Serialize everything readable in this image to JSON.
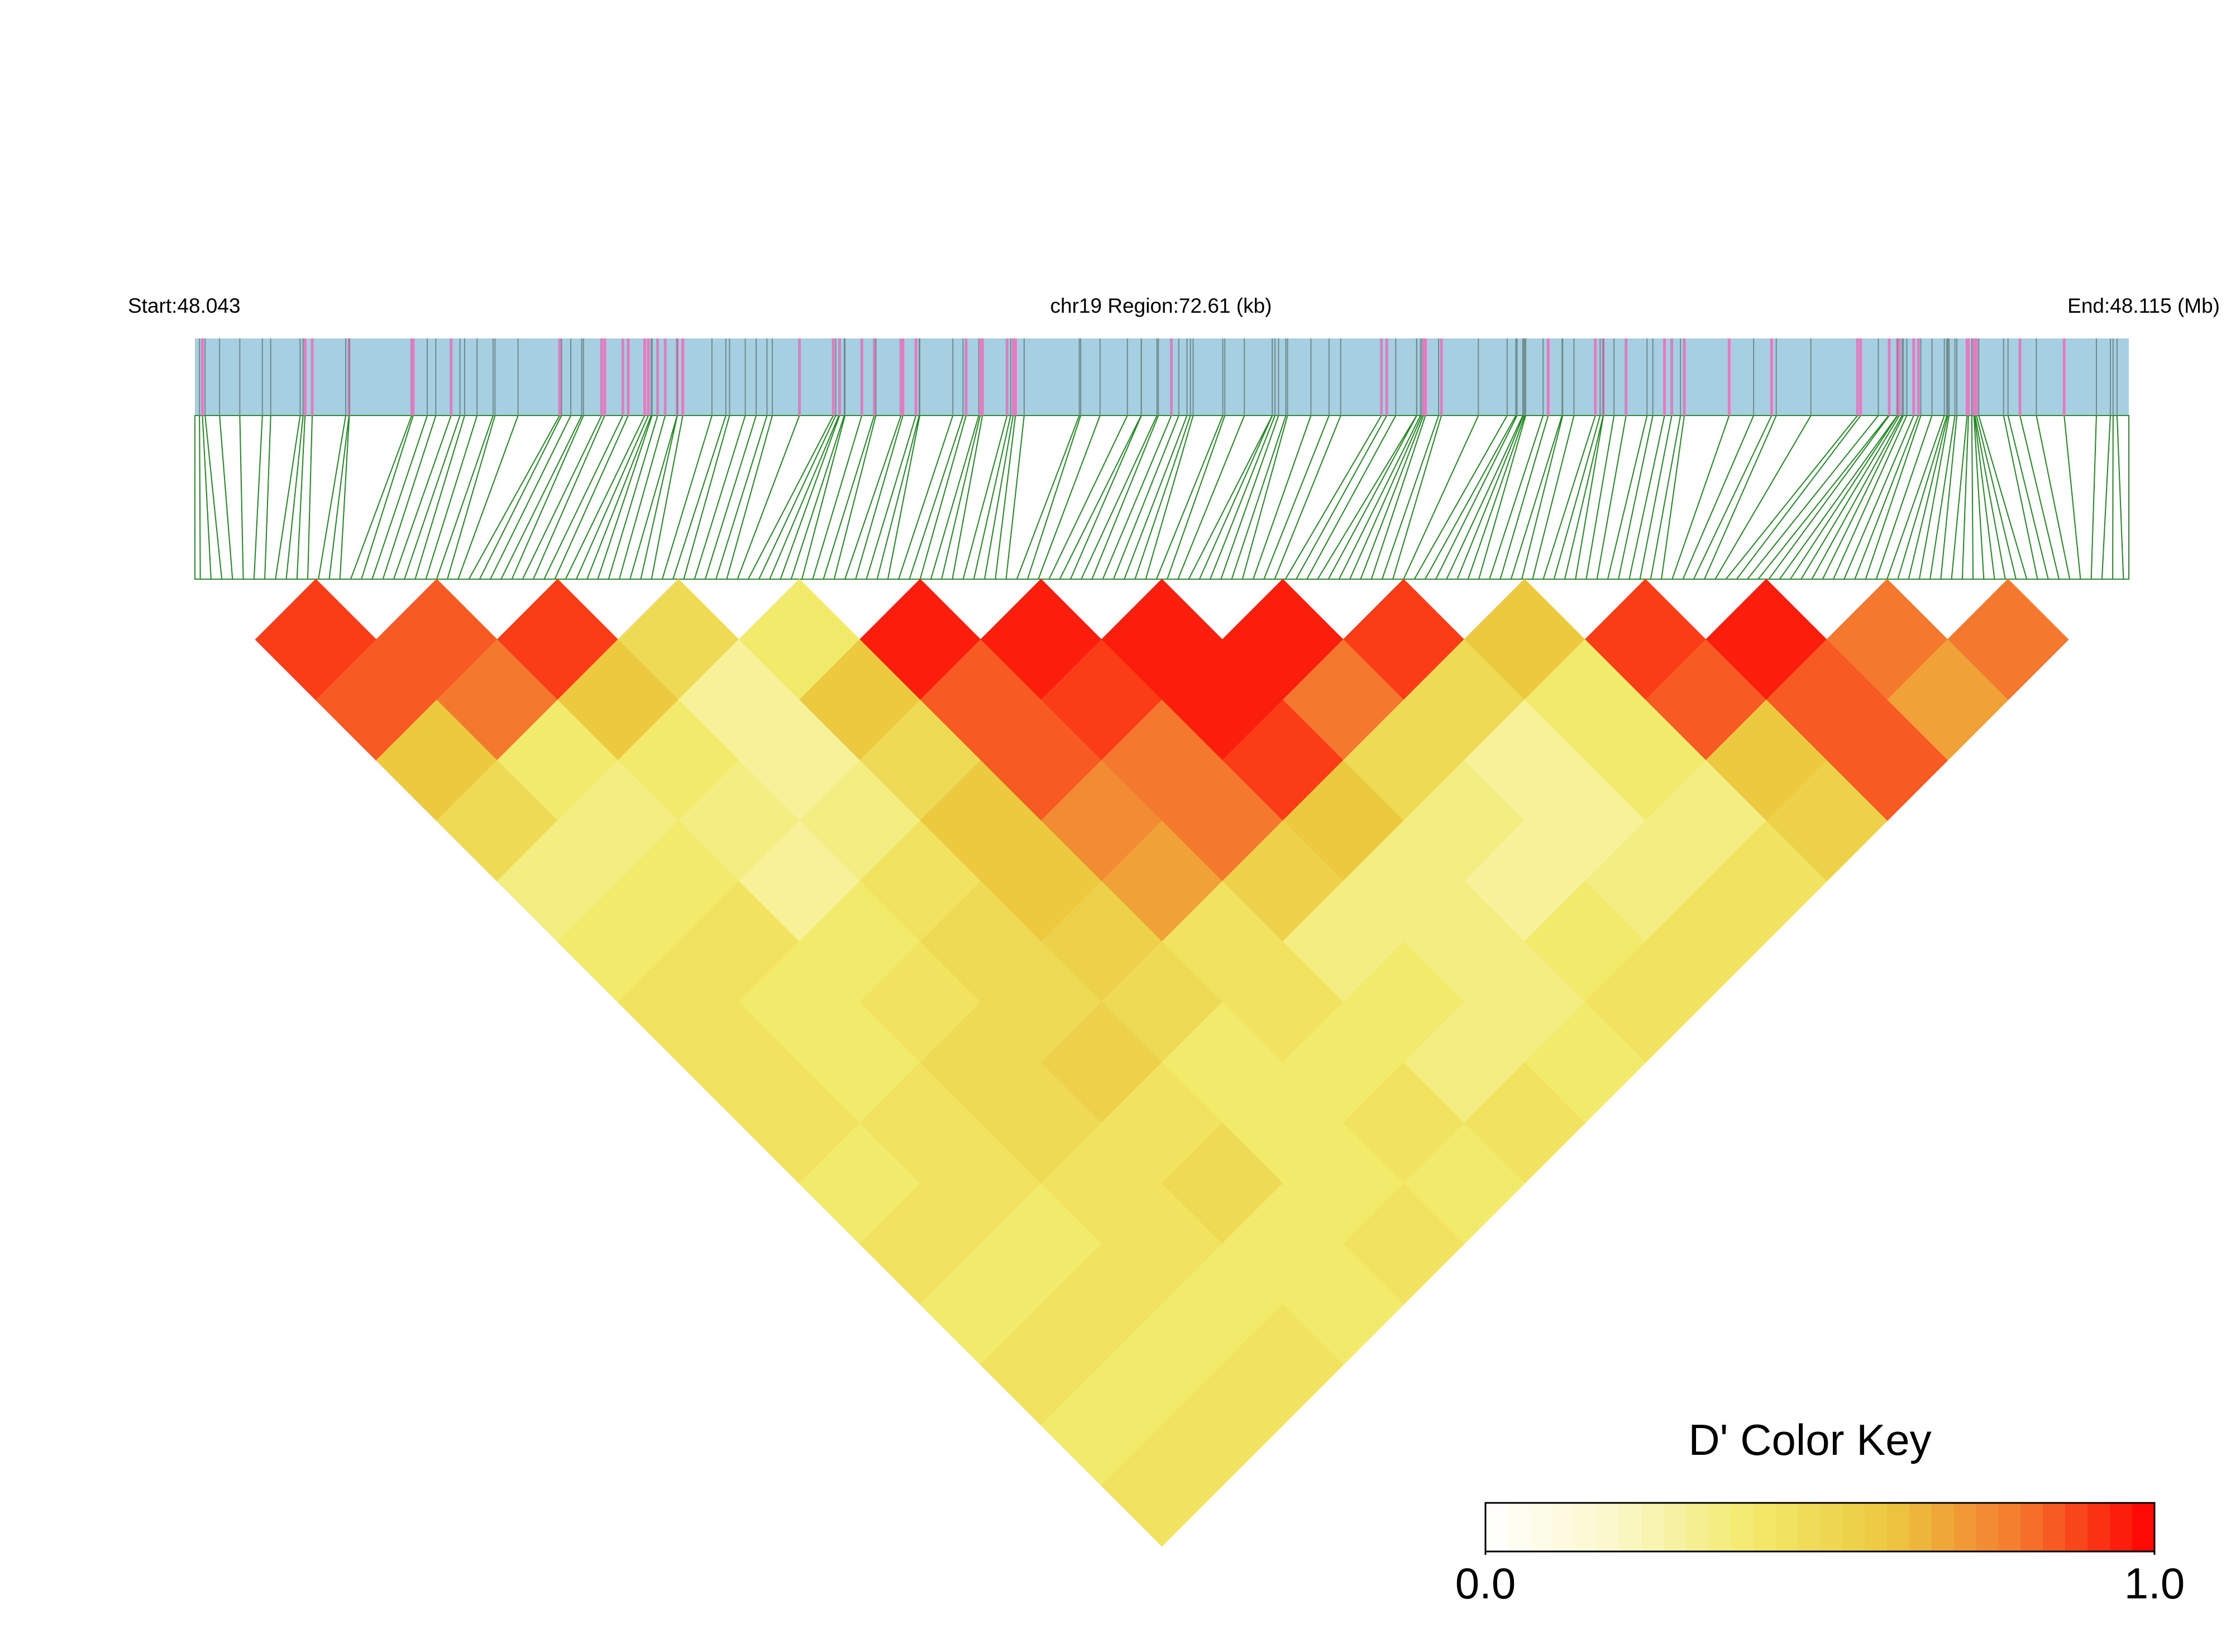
{
  "chart_data": {
    "type": "ld-heatmap",
    "start_label": "Start:48.043",
    "region_label": "chr19 Region:72.61 (kb)",
    "end_label": "End:48.115 (Mb)",
    "dprime_by_distance": [
      [
        0.9,
        0.85,
        0.9,
        0.5,
        0.4,
        0.95,
        0.95,
        0.95,
        0.95,
        0.9,
        0.6,
        0.9,
        0.95,
        0.8,
        0.8
      ],
      [
        0.85,
        0.8,
        0.6,
        0.3,
        0.6,
        0.85,
        0.9,
        0.95,
        0.8,
        0.5,
        0.4,
        0.85,
        0.85,
        0.7
      ],
      [
        0.6,
        0.4,
        0.4,
        0.3,
        0.5,
        0.85,
        0.8,
        0.9,
        0.5,
        0.3,
        0.4,
        0.6,
        0.85
      ],
      [
        0.5,
        0.35,
        0.35,
        0.35,
        0.6,
        0.75,
        0.8,
        0.6,
        0.35,
        0.3,
        0.35,
        0.55
      ],
      [
        0.35,
        0.4,
        0.3,
        0.45,
        0.6,
        0.7,
        0.55,
        0.35,
        0.3,
        0.35,
        0.45
      ],
      [
        0.4,
        0.45,
        0.4,
        0.5,
        0.55,
        0.45,
        0.35,
        0.35,
        0.4,
        0.45
      ],
      [
        0.45,
        0.4,
        0.45,
        0.5,
        0.5,
        0.45,
        0.4,
        0.35,
        0.45
      ],
      [
        0.45,
        0.4,
        0.5,
        0.55,
        0.4,
        0.4,
        0.35,
        0.4
      ],
      [
        0.45,
        0.45,
        0.5,
        0.45,
        0.4,
        0.45,
        0.45
      ],
      [
        0.4,
        0.45,
        0.45,
        0.5,
        0.4,
        0.4
      ],
      [
        0.45,
        0.4,
        0.45,
        0.4,
        0.45
      ],
      [
        0.4,
        0.45,
        0.4,
        0.4
      ],
      [
        0.45,
        0.4,
        0.45
      ],
      [
        0.4,
        0.45
      ],
      [
        0.45
      ]
    ],
    "color_key": {
      "title": "D' Color Key",
      "colors": [
        "#ffffff",
        "#fbf7c8",
        "#f2ea6a",
        "#ecc93f",
        "#f4782e",
        "#ff0000"
      ],
      "lim": [
        0,
        1
      ],
      "ticks": [
        {
          "value": 0,
          "label": "0.0"
        },
        {
          "value": 1,
          "label": "1.0"
        }
      ]
    }
  }
}
